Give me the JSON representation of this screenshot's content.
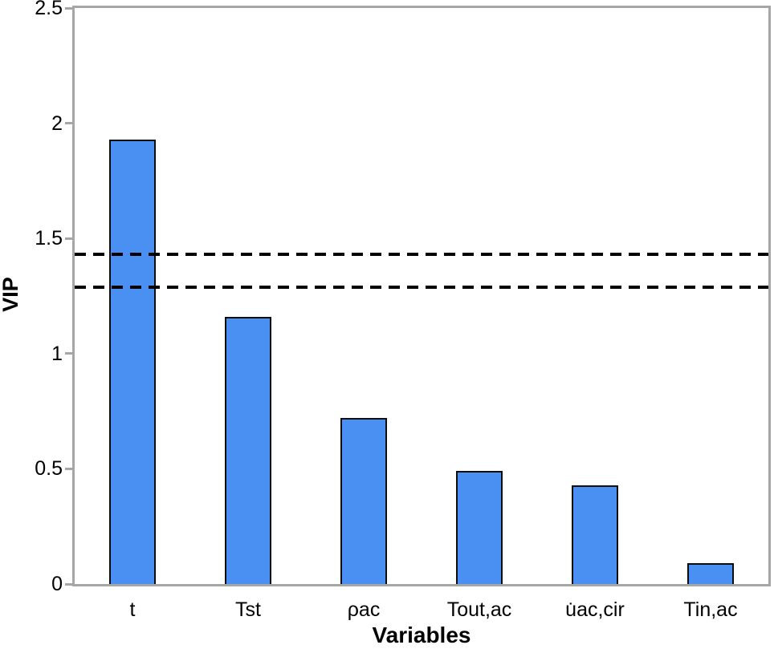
{
  "chart_data": {
    "type": "bar",
    "title": "",
    "xlabel": "Variables",
    "ylabel": "VIP",
    "categories": [
      "t",
      "Tst",
      "ρac",
      "Tout,ac",
      "u̇ac,cir",
      "Tin,ac"
    ],
    "values": [
      1.93,
      1.16,
      0.72,
      0.49,
      0.43,
      0.09
    ],
    "ylim": [
      0,
      2.5
    ],
    "yticks": [
      0,
      0.5,
      1,
      1.5,
      2,
      2.5
    ],
    "threshold_lines": [
      1.43,
      1.29
    ],
    "grid": false,
    "legend": false,
    "bar_color": "#4A90F2",
    "bar_border_color": "#0d0d0d",
    "threshold_color": "#000000",
    "axis_color": "#A6A6A6",
    "text_color": "#000000"
  }
}
